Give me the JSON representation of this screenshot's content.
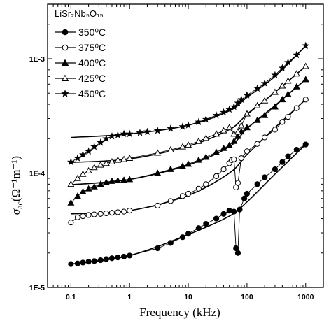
{
  "chart_data": {
    "type": "scatter",
    "title": "",
    "xlabel": "Frequency (kHz)",
    "ylabel": "σac(Ω⁻¹m⁻¹)",
    "ylabel_parts": {
      "symbol": "σ",
      "subscript": "ac",
      "units": "(Ω⁻¹m⁻¹)"
    },
    "xscale": "log",
    "yscale": "log",
    "xlim": [
      0.04,
      2000
    ],
    "ylim": [
      1e-05,
      0.003
    ],
    "x_ticks": [
      0.1,
      1,
      10,
      100,
      1000
    ],
    "x_tick_labels": [
      "0.1",
      "1",
      "10",
      "100",
      "1000"
    ],
    "y_ticks": [
      1e-05,
      0.0001,
      0.001
    ],
    "y_tick_labels": [
      "1E-5",
      "1E-4",
      "1E-3"
    ],
    "grid": false,
    "legend_title": "LiSr₂Nb₅O₁₅",
    "legend_position": "top-left",
    "series": [
      {
        "name": "350⁰C",
        "marker": "filled-circle",
        "x": [
          0.1,
          0.13,
          0.16,
          0.2,
          0.25,
          0.32,
          0.4,
          0.5,
          0.63,
          0.8,
          1,
          3,
          5,
          8,
          10,
          15,
          20,
          30,
          40,
          50,
          60,
          65,
          70,
          75,
          90,
          100,
          150,
          200,
          300,
          400,
          500,
          700,
          1000
        ],
        "values": [
          1.6e-05,
          1.62e-05,
          1.65e-05,
          1.68e-05,
          1.7e-05,
          1.73e-05,
          1.77e-05,
          1.8e-05,
          1.83e-05,
          1.86e-05,
          1.9e-05,
          2.2e-05,
          2.45e-05,
          2.75e-05,
          2.95e-05,
          3.3e-05,
          3.6e-05,
          4e-05,
          4.4e-05,
          4.7e-05,
          4.6e-05,
          2.2e-05,
          2e-05,
          4.8e-05,
          6e-05,
          6.6e-05,
          8e-05,
          9.2e-05,
          0.000108,
          0.000125,
          0.00014,
          0.00016,
          0.000178
        ],
        "fit_x": [
          0.1,
          1,
          10,
          50,
          100,
          300,
          1000
        ],
        "fit_y": [
          1.6e-05,
          1.9e-05,
          2.9e-05,
          4.2e-05,
          5.6e-05,
          9.8e-05,
          0.000178
        ]
      },
      {
        "name": "375⁰C",
        "marker": "open-circle",
        "x": [
          0.1,
          0.13,
          0.16,
          0.2,
          0.25,
          0.32,
          0.4,
          0.5,
          0.63,
          0.8,
          1,
          3,
          5,
          8,
          10,
          15,
          20,
          30,
          40,
          50,
          55,
          60,
          65,
          70,
          80,
          100,
          150,
          200,
          300,
          400,
          500,
          700,
          1000
        ],
        "values": [
          3.7e-05,
          4.1e-05,
          4.2e-05,
          4.3e-05,
          4.35e-05,
          4.4e-05,
          4.45e-05,
          4.5e-05,
          4.55e-05,
          4.6e-05,
          4.7e-05,
          5.2e-05,
          5.7e-05,
          6.3e-05,
          6.6e-05,
          7.3e-05,
          8e-05,
          9.4e-05,
          0.000108,
          0.000122,
          0.00013,
          0.000132,
          7.5e-05,
          8.2e-05,
          0.000135,
          0.000155,
          0.00018,
          0.000205,
          0.00024,
          0.00028,
          0.00031,
          0.00037,
          0.00044
        ],
        "fit_x": [
          0.1,
          1,
          10,
          50,
          100,
          300,
          1000
        ],
        "fit_y": [
          4.4e-05,
          4.7e-05,
          6.4e-05,
          0.0001,
          0.000145,
          0.00025,
          0.00044
        ]
      },
      {
        "name": "400⁰C",
        "marker": "filled-triangle",
        "x": [
          0.1,
          0.13,
          0.16,
          0.2,
          0.25,
          0.32,
          0.4,
          0.5,
          0.63,
          0.8,
          1,
          3,
          5,
          8,
          10,
          15,
          20,
          30,
          40,
          50,
          60,
          70,
          80,
          100,
          150,
          200,
          300,
          400,
          500,
          700,
          1000
        ],
        "values": [
          5.5e-05,
          6.3e-05,
          6.9e-05,
          7.3e-05,
          7.6e-05,
          8e-05,
          8.3e-05,
          8.5e-05,
          8.6e-05,
          8.7e-05,
          8.8e-05,
          0.0001,
          0.000108,
          0.000115,
          0.00012,
          0.00013,
          0.000138,
          0.000152,
          0.000165,
          0.000175,
          0.00019,
          0.00021,
          0.00023,
          0.00025,
          0.00029,
          0.00032,
          0.00038,
          0.00044,
          0.00049,
          0.00057,
          0.00066
        ],
        "fit_x": [
          0.1,
          1,
          10,
          50,
          100,
          300,
          1000
        ],
        "fit_y": [
          7.9e-05,
          8.8e-05,
          0.000118,
          0.00017,
          0.000245,
          0.00039,
          0.00066
        ]
      },
      {
        "name": "425⁰C",
        "marker": "open-triangle",
        "x": [
          0.1,
          0.13,
          0.16,
          0.2,
          0.25,
          0.32,
          0.4,
          0.5,
          0.63,
          0.8,
          1,
          3,
          5,
          8,
          10,
          15,
          20,
          30,
          40,
          50,
          60,
          70,
          80,
          100,
          150,
          200,
          300,
          400,
          500,
          700,
          1000
        ],
        "values": [
          8e-05,
          9e-05,
          9.8e-05,
          0.000105,
          0.000112,
          0.000118,
          0.000122,
          0.000126,
          0.00013,
          0.000132,
          0.000135,
          0.00015,
          0.00016,
          0.00017,
          0.000176,
          0.00019,
          0.000202,
          0.00022,
          0.000235,
          0.00025,
          0.00022,
          0.00023,
          0.00026,
          0.00033,
          0.00039,
          0.00043,
          0.00051,
          0.00058,
          0.00064,
          0.00074,
          0.00086
        ],
        "fit_x": [
          0.1,
          1,
          10,
          50,
          100,
          300,
          1000
        ],
        "fit_y": [
          0.000124,
          0.000133,
          0.000172,
          0.00024,
          0.000325,
          0.00051,
          0.00086
        ]
      },
      {
        "name": "450⁰C",
        "marker": "filled-star",
        "x": [
          0.1,
          0.13,
          0.16,
          0.2,
          0.25,
          0.32,
          0.4,
          0.5,
          0.63,
          0.8,
          1,
          1.5,
          2,
          3,
          5,
          8,
          10,
          15,
          20,
          30,
          40,
          50,
          60,
          70,
          80,
          100,
          150,
          200,
          300,
          400,
          500,
          700,
          1000
        ],
        "values": [
          0.000125,
          0.000135,
          0.000145,
          0.000155,
          0.00017,
          0.000185,
          0.0002,
          0.00021,
          0.000215,
          0.00022,
          0.00022,
          0.000225,
          0.00023,
          0.000235,
          0.000245,
          0.000255,
          0.000262,
          0.00028,
          0.000295,
          0.00032,
          0.00034,
          0.00036,
          0.00038,
          0.00041,
          0.00044,
          0.00048,
          0.00055,
          0.00061,
          0.00072,
          0.00083,
          0.00093,
          0.00108,
          0.0013
        ],
        "fit_x": [
          0.1,
          1,
          10,
          50,
          100,
          300,
          1000
        ],
        "fit_y": [
          0.000205,
          0.00022,
          0.000262,
          0.00035,
          0.00046,
          0.0007,
          0.0013
        ]
      }
    ]
  }
}
